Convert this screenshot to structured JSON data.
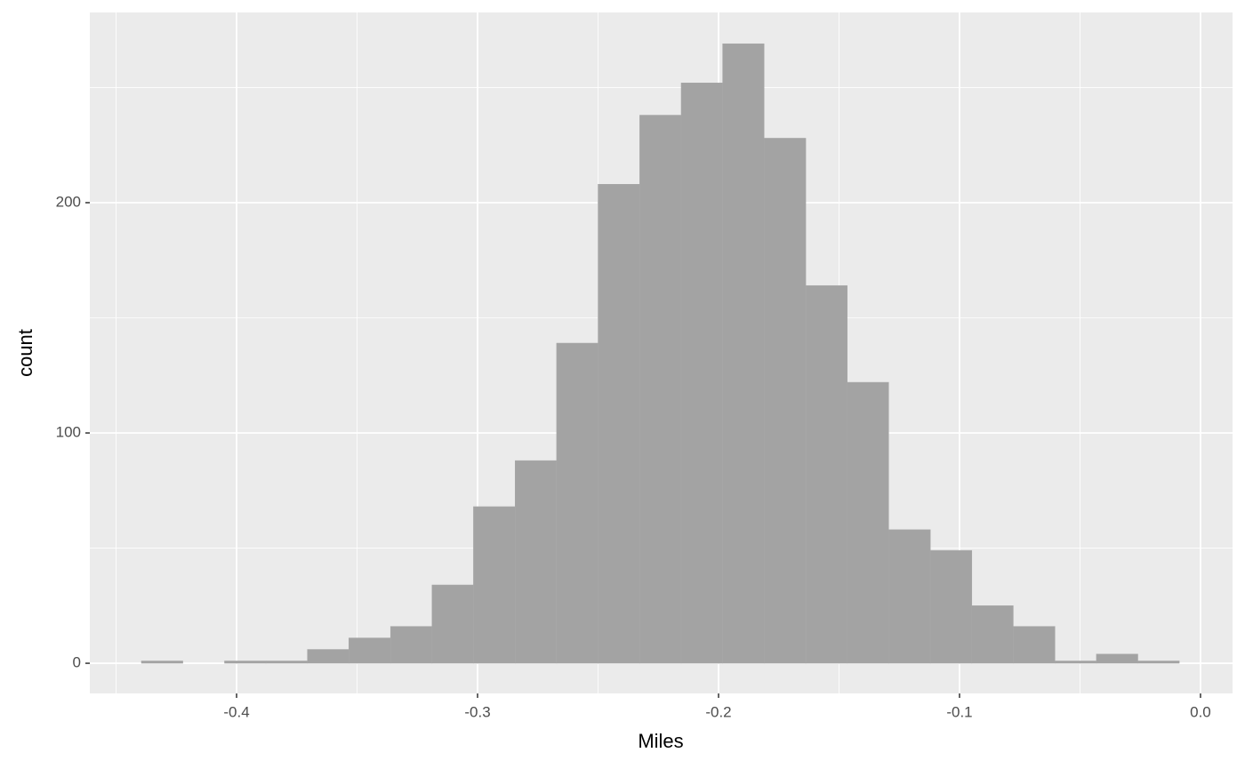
{
  "chart_data": {
    "type": "histogram",
    "x_label": "Miles",
    "y_label": "count",
    "bins": [
      -0.4395,
      -0.4223,
      -0.405,
      -0.3878,
      -0.3706,
      -0.3534,
      -0.3361,
      -0.3189,
      -0.3017,
      -0.2844,
      -0.2672,
      -0.25,
      -0.2327,
      -0.2155,
      -0.1983,
      -0.1811,
      -0.1638,
      -0.1466,
      -0.1294,
      -0.1121,
      -0.0949,
      -0.0777,
      -0.0604,
      -0.0432,
      -0.026,
      -0.0088
    ],
    "values": [
      1,
      0,
      1,
      1,
      6,
      11,
      16,
      34,
      68,
      88,
      139,
      208,
      238,
      252,
      269,
      228,
      164,
      122,
      58,
      49,
      25,
      16,
      1,
      4,
      1
    ],
    "color": "#a3a3a3",
    "xlim": [
      -0.4609,
      0.0133
    ],
    "ylim": [
      -13.1,
      282.6
    ],
    "xticks": [
      -0.4,
      -0.3,
      -0.2,
      -0.1,
      {
        "value": 0,
        "label": "0.0"
      }
    ],
    "yticks": [
      0,
      100,
      200
    ],
    "x_minor_ticks": [
      -0.45,
      -0.35,
      -0.25,
      -0.15,
      -0.05
    ],
    "y_minor_ticks": [
      50,
      150,
      250
    ],
    "grid": true
  }
}
